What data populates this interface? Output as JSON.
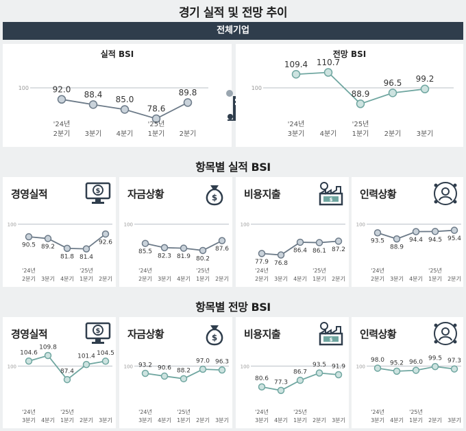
{
  "title": "경기 실적 및 전망 추이",
  "banner": "전체기업",
  "top": {
    "actual": {
      "title": "실적 BSI",
      "baseline_label": "100",
      "x_labels": [
        {
          "year": "'24년",
          "q": "2분기"
        },
        {
          "year": "",
          "q": "3분기"
        },
        {
          "year": "",
          "q": "4분기"
        },
        {
          "year": "'25년",
          "q": "1분기"
        },
        {
          "year": "",
          "q": "2분기"
        }
      ]
    },
    "forecast": {
      "title": "전망 BSI",
      "baseline_label": "100",
      "x_labels": [
        {
          "year": "'24년",
          "q": "3분기"
        },
        {
          "year": "",
          "q": "4분기"
        },
        {
          "year": "'25년",
          "q": "1분기"
        },
        {
          "year": "",
          "q": "2분기"
        },
        {
          "year": "",
          "q": "3분기"
        }
      ]
    }
  },
  "section_actual_title": "항목별 실적 BSI",
  "section_forecast_title": "항목별 전망 BSI",
  "small_actual_x_labels": [
    {
      "year": "'24년",
      "q": "2분기"
    },
    {
      "year": "",
      "q": "3분기"
    },
    {
      "year": "",
      "q": "4분기"
    },
    {
      "year": "'25년",
      "q": "1분기"
    },
    {
      "year": "",
      "q": "2분기"
    }
  ],
  "small_forecast_x_labels": [
    {
      "year": "'24년",
      "q": "3분기"
    },
    {
      "year": "",
      "q": "4분기"
    },
    {
      "year": "'25년",
      "q": "1분기"
    },
    {
      "year": "",
      "q": "2분기"
    },
    {
      "year": "",
      "q": "3분기"
    }
  ],
  "colors": {
    "actual_line": "#6c7a88",
    "actual_point": "#c9d2da",
    "forecast_line": "#6fa6a0",
    "forecast_point": "#cde3e0",
    "banner": "#2f3d4c"
  },
  "icons": [
    "monitor-money-icon",
    "money-bag-icon",
    "factory-money-icon",
    "people-network-icon",
    "buildings-icon"
  ],
  "chart_data": [
    {
      "type": "line",
      "title": "실적 BSI",
      "categories": [
        "'24년 2분기",
        "3분기",
        "4분기",
        "'25년 1분기",
        "2분기"
      ],
      "values": [
        92.0,
        88.4,
        85.0,
        78.6,
        89.8
      ],
      "labels": [
        "92.0",
        "88.4",
        "85.0",
        "78.6",
        "89.8"
      ],
      "ylim": [
        60,
        120
      ],
      "reference": 100
    },
    {
      "type": "line",
      "title": "전망 BSI",
      "categories": [
        "'24년 3분기",
        "4분기",
        "'25년 1분기",
        "2분기",
        "3분기"
      ],
      "values": [
        109.4,
        110.7,
        88.9,
        96.5,
        99.2
      ],
      "labels": [
        "109.4",
        "110.7",
        "88.9",
        "96.5",
        "99.2"
      ],
      "ylim": [
        60,
        120
      ],
      "reference": 100
    },
    {
      "type": "line",
      "title": "경영실적",
      "group": "항목별 실적 BSI",
      "values": [
        90.5,
        89.2,
        81.8,
        81.4,
        92.6
      ],
      "labels": [
        "90.5",
        "89.2",
        "81.8",
        "81.4",
        "92.6"
      ],
      "ylim": [
        60,
        120
      ],
      "reference": 100
    },
    {
      "type": "line",
      "title": "자금상황",
      "group": "항목별 실적 BSI",
      "values": [
        85.5,
        82.3,
        81.9,
        80.2,
        87.6
      ],
      "labels": [
        "85.5",
        "82.3",
        "81.9",
        "80.2",
        "87.6"
      ],
      "ylim": [
        60,
        120
      ],
      "reference": 100
    },
    {
      "type": "line",
      "title": "비용지출",
      "group": "항목별 실적 BSI",
      "values": [
        77.9,
        76.8,
        86.4,
        86.1,
        87.2
      ],
      "labels": [
        "77.9",
        "76.8",
        "86.4",
        "86.1",
        "87.2"
      ],
      "ylim": [
        60,
        120
      ],
      "reference": 100
    },
    {
      "type": "line",
      "title": "인력상황",
      "group": "항목별 실적 BSI",
      "values": [
        93.5,
        88.9,
        94.4,
        94.5,
        95.4
      ],
      "labels": [
        "93.5",
        "88.9",
        "94.4",
        "94.5",
        "95.4"
      ],
      "ylim": [
        60,
        120
      ],
      "reference": 100
    },
    {
      "type": "line",
      "title": "경영실적",
      "group": "항목별 전망 BSI",
      "values": [
        104.6,
        109.8,
        87.4,
        101.4,
        104.5
      ],
      "labels": [
        "104.6",
        "109.8",
        "87.4",
        "101.4",
        "104.5"
      ],
      "ylim": [
        60,
        120
      ],
      "reference": 100
    },
    {
      "type": "line",
      "title": "자금상황",
      "group": "항목별 전망 BSI",
      "values": [
        93.2,
        90.6,
        88.2,
        97.0,
        96.3
      ],
      "labels": [
        "93.2",
        "90.6",
        "88.2",
        "97.0",
        "96.3"
      ],
      "ylim": [
        60,
        120
      ],
      "reference": 100
    },
    {
      "type": "line",
      "title": "비용지출",
      "group": "항목별 전망 BSI",
      "values": [
        80.6,
        77.3,
        86.7,
        93.5,
        91.9
      ],
      "labels": [
        "80.6",
        "77.3",
        "86.7",
        "93.5",
        "91.9"
      ],
      "ylim": [
        60,
        120
      ],
      "reference": 100
    },
    {
      "type": "line",
      "title": "인력상황",
      "group": "항목별 전망 BSI",
      "values": [
        98.0,
        95.2,
        96.0,
        99.5,
        97.3
      ],
      "labels": [
        "98.0",
        "95.2",
        "96.0",
        "99.5",
        "97.3"
      ],
      "ylim": [
        60,
        120
      ],
      "reference": 100
    }
  ]
}
